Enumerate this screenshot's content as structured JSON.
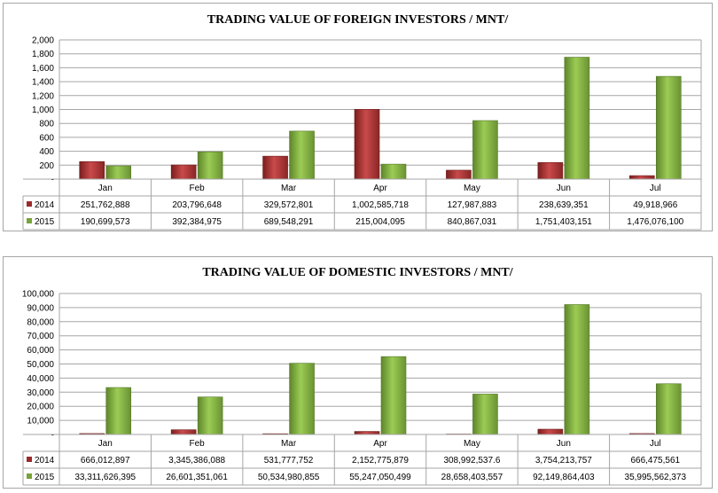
{
  "chart_data": [
    {
      "type": "bar",
      "title": "TRADING VALUE OF FOREIGN INVESTORS / MNT/",
      "categories": [
        "Jan",
        "Feb",
        "Mar",
        "Apr",
        "May",
        "Jun",
        "Jul"
      ],
      "series": [
        {
          "name": "2014",
          "values": [
            251.762888,
            203.796648,
            329.572801,
            1002.585718,
            127.987883,
            238.639351,
            49.918966
          ],
          "labels": [
            "251,762,888",
            "203,796,648",
            "329,572,801",
            "1,002,585,718",
            "127,987,883",
            "238,639,351",
            "49,918,966"
          ]
        },
        {
          "name": "2015",
          "values": [
            190.699573,
            392.384975,
            689.548291,
            215.004095,
            840.867031,
            1751.403151,
            1476.0761
          ],
          "labels": [
            "190,699,573",
            "392,384,975",
            "689,548,291",
            "215,004,095",
            "840,867,031",
            "1,751,403,151",
            "1,476,076,100"
          ]
        }
      ],
      "yticks": [
        "-",
        "200",
        "400",
        "600",
        "800",
        "1,000",
        "1,200",
        "1,400",
        "1,600",
        "1,800",
        "2,000"
      ],
      "ylim": [
        0,
        2000
      ],
      "grid": true,
      "legend": "data-table"
    },
    {
      "type": "bar",
      "title": "TRADING VALUE OF DOMESTIC INVESTORS / MNT/",
      "categories": [
        "Jan",
        "Feb",
        "Mar",
        "Apr",
        "May",
        "Jun",
        "Jul"
      ],
      "series": [
        {
          "name": "2014",
          "values": [
            666.012897,
            3345.386088,
            531.777752,
            2152.775879,
            308.9925376,
            3754.213757,
            666.475561
          ],
          "labels": [
            "666,012,897",
            "3,345,386,088",
            "531,777,752",
            "2,152,775,879",
            "308,992,537.6",
            "3,754,213,757",
            "666,475,561"
          ]
        },
        {
          "name": "2015",
          "values": [
            33311.626395,
            26601.351061,
            50534.980855,
            55247.050499,
            28658.403557,
            92149.864403,
            35995.562373
          ],
          "labels": [
            "33,311,626,395",
            "26,601,351,061",
            "50,534,980,855",
            "55,247,050,499",
            "28,658,403,557",
            "92,149,864,403",
            "35,995,562,373"
          ]
        }
      ],
      "yticks": [
        "-",
        "10,000",
        "20,000",
        "30,000",
        "40,000",
        "50,000",
        "60,000",
        "70,000",
        "80,000",
        "90,000",
        "100,000"
      ],
      "ylim": [
        0,
        100000
      ],
      "grid": true,
      "legend": "data-table"
    }
  ],
  "colors": {
    "series_2014": "#9b2a2a",
    "series_2015": "#77a33a",
    "grid": "#a6a6a6"
  }
}
